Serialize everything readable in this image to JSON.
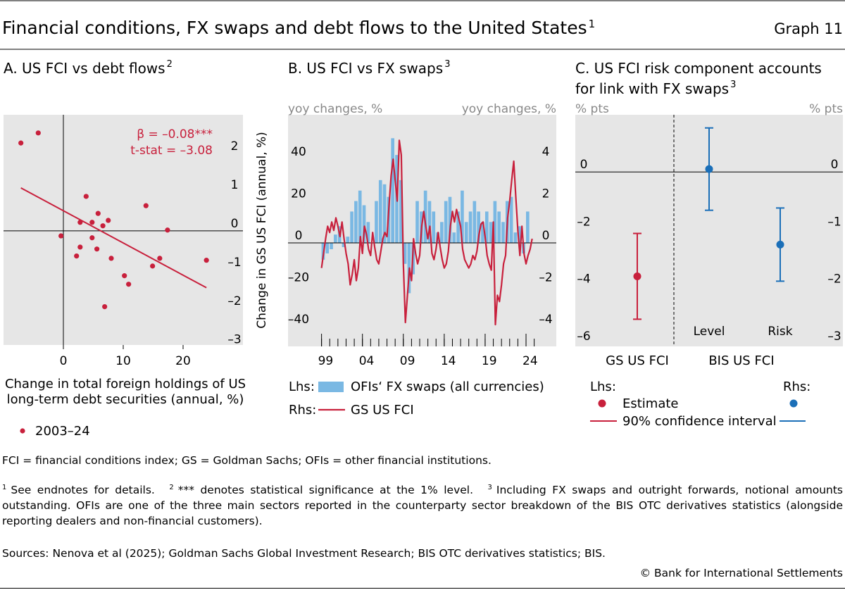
{
  "title": "Financial conditions, FX swaps and debt flows to the United States",
  "title_note": "1",
  "graph_label": "Graph 11",
  "chart_data": [
    {
      "type": "scatter",
      "title": [
        "A. US FCI vs debt flows"
      ],
      "title_note": "2",
      "xlabel": [
        "Change in total foreign holdings of US",
        "long-term debt securities (annual, %)"
      ],
      "ylabel": "Change in GS US FCI (annual, %)",
      "xlim": [
        -10,
        30
      ],
      "ylim": [
        -2.95,
        3.0
      ],
      "xticks": [
        0,
        10,
        20
      ],
      "yticks": [
        {
          "value": -3,
          "label": "–3"
        },
        {
          "value": -2,
          "label": "–2"
        },
        {
          "value": -1,
          "label": "–1"
        },
        0,
        1,
        2
      ],
      "series": [
        {
          "name": "2003–24",
          "color": "#c8203c",
          "x": [
            -7.1,
            -4.2,
            3.8,
            13.8,
            5.8,
            2.8,
            4.8,
            7.5,
            6.6,
            17.4,
            -0.4,
            4.8,
            2.8,
            5.6,
            2.2,
            8.0,
            16.1,
            23.9,
            14.9,
            10.2,
            10.9,
            6.9
          ],
          "values": [
            2.27,
            2.53,
            0.89,
            0.65,
            0.45,
            0.22,
            0.22,
            0.27,
            0.13,
            0.02,
            -0.13,
            -0.18,
            -0.42,
            -0.47,
            -0.65,
            -0.71,
            -0.71,
            -0.76,
            -0.91,
            -1.16,
            -1.38,
            -1.96
          ]
        }
      ],
      "fit": {
        "x": [
          -7.1,
          23.9
        ],
        "y": [
          1.11,
          -1.47
        ]
      },
      "annotations": [
        "β = –0.08***",
        "t-stat = –3.08"
      ]
    },
    {
      "type": "bar-line",
      "title": [
        "B. US FCI vs FX swaps"
      ],
      "title_note": "3",
      "ylabel": "yoy changes, %",
      "y2label": "yoy changes, %",
      "xlim": [
        1994.9,
        2027.7
      ],
      "ylim": [
        -49.4,
        61.2
      ],
      "y2lim": [
        -4.94,
        6.12
      ],
      "yticks": [
        {
          "value": -40,
          "label": "–40"
        },
        {
          "value": -20,
          "label": "–20"
        },
        0,
        20,
        40
      ],
      "y2ticks": [
        {
          "value": -4,
          "label": "–4"
        },
        {
          "value": -2,
          "label": "–2"
        },
        0,
        2,
        4
      ],
      "xticks": [
        {
          "value": 1999,
          "label": "99"
        },
        {
          "value": 2004,
          "label": "04"
        },
        {
          "value": 2009,
          "label": "09"
        },
        {
          "value": 2014,
          "label": "14"
        },
        {
          "value": 2019,
          "label": "19"
        },
        {
          "value": 2024,
          "label": "24"
        }
      ],
      "xminorticks": [
        1999,
        2000,
        2001,
        2002,
        2003,
        2004,
        2005,
        2006,
        2007,
        2008,
        2009,
        2010,
        2011,
        2012,
        2013,
        2014,
        2015,
        2016,
        2017,
        2018,
        2019,
        2020,
        2021,
        2022,
        2023,
        2024,
        2025
      ],
      "series": [
        {
          "name": "OFIs‘ FX swaps (all currencies)",
          "side_label": "Lhs:",
          "type": "bar",
          "axis": "y",
          "color": "#7ab8e3",
          "x": [
            1999.0,
            1999.5,
            2000.0,
            2000.5,
            2001.0,
            2001.5,
            2002.0,
            2002.5,
            2003.0,
            2003.5,
            2004.0,
            2004.5,
            2005.0,
            2005.5,
            2006.0,
            2006.5,
            2007.0,
            2007.5,
            2008.0,
            2008.5,
            2009.0,
            2009.5,
            2010.0,
            2010.5,
            2011.0,
            2011.5,
            2012.0,
            2012.5,
            2013.0,
            2013.5,
            2014.0,
            2014.5,
            2015.0,
            2015.5,
            2016.0,
            2016.5,
            2017.0,
            2017.5,
            2018.0,
            2018.5,
            2019.0,
            2019.5,
            2020.0,
            2020.5,
            2021.0,
            2021.5,
            2022.0,
            2022.5,
            2023.0,
            2023.5,
            2024.0
          ],
          "values": [
            -8,
            -5,
            -3,
            4,
            8,
            -2,
            3,
            15,
            20,
            25,
            18,
            10,
            0,
            20,
            30,
            28,
            22,
            50,
            42,
            30,
            -10,
            -24,
            -15,
            20,
            15,
            25,
            20,
            15,
            5,
            10,
            20,
            22,
            5,
            15,
            25,
            10,
            15,
            20,
            15,
            10,
            15,
            10,
            20,
            15,
            10,
            20,
            22,
            5,
            8,
            -5,
            15
          ]
        },
        {
          "name": "GS US FCI",
          "side_label": "Rhs:",
          "type": "line",
          "axis": "y2",
          "color": "#c8203c",
          "x": [
            1999.0,
            1999.25,
            1999.5,
            1999.75,
            2000.0,
            2000.25,
            2000.5,
            2000.75,
            2001.0,
            2001.25,
            2001.5,
            2001.75,
            2002.0,
            2002.25,
            2002.5,
            2002.75,
            2003.0,
            2003.25,
            2003.5,
            2003.75,
            2004.0,
            2004.25,
            2004.5,
            2004.75,
            2005.0,
            2005.25,
            2005.5,
            2005.75,
            2006.0,
            2006.25,
            2006.5,
            2006.75,
            2007.0,
            2007.25,
            2007.5,
            2007.75,
            2008.0,
            2008.25,
            2008.5,
            2008.75,
            2009.0,
            2009.25,
            2009.5,
            2009.75,
            2010.0,
            2010.25,
            2010.5,
            2010.75,
            2011.0,
            2011.25,
            2011.5,
            2011.75,
            2012.0,
            2012.25,
            2012.5,
            2012.75,
            2013.0,
            2013.25,
            2013.5,
            2013.75,
            2014.0,
            2014.25,
            2014.5,
            2014.75,
            2015.0,
            2015.25,
            2015.5,
            2015.75,
            2016.0,
            2016.25,
            2016.5,
            2016.75,
            2017.0,
            2017.25,
            2017.5,
            2017.75,
            2018.0,
            2018.25,
            2018.5,
            2018.75,
            2019.0,
            2019.25,
            2019.5,
            2019.75,
            2020.0,
            2020.25,
            2020.5,
            2020.75,
            2021.0,
            2021.25,
            2021.5,
            2021.75,
            2022.0,
            2022.25,
            2022.5,
            2022.75,
            2023.0,
            2023.25,
            2023.5,
            2023.75,
            2024.0,
            2024.25,
            2024.5,
            2024.75
          ],
          "values": [
            -1.2,
            -0.5,
            0.2,
            0.8,
            0.5,
            1.0,
            0.6,
            1.2,
            0.8,
            0.3,
            1.0,
            0.2,
            -0.5,
            -1.0,
            -2.0,
            -1.5,
            -0.8,
            -1.8,
            -1.2,
            0.3,
            -0.5,
            0.8,
            0.4,
            -0.3,
            -0.6,
            0.5,
            -0.2,
            -0.8,
            -1.0,
            -0.4,
            0.2,
            0.5,
            0.3,
            1.8,
            3.2,
            4.0,
            3.0,
            2.0,
            4.9,
            4.2,
            -1.0,
            -3.8,
            -2.5,
            -1.2,
            -1.8,
            0.2,
            -0.5,
            -1.0,
            -0.6,
            0.8,
            1.5,
            0.8,
            0.2,
            0.8,
            -0.5,
            -0.8,
            -0.3,
            0.5,
            -0.2,
            -0.8,
            -1.2,
            -1.0,
            -0.4,
            0.8,
            1.5,
            1.0,
            1.6,
            1.2,
            0.8,
            -0.3,
            -0.8,
            -1.0,
            -1.2,
            -1.0,
            -0.6,
            -0.8,
            -0.4,
            0.4,
            0.9,
            1.0,
            0.3,
            -0.6,
            -1.0,
            -1.3,
            1.0,
            -3.9,
            -2.5,
            -2.8,
            -2.0,
            -1.0,
            -0.6,
            1.2,
            2.0,
            3.0,
            3.9,
            2.2,
            0.6,
            -0.6,
            0.8,
            -0.5,
            -1.0,
            -0.6,
            -0.3,
            0.2
          ]
        }
      ]
    },
    {
      "type": "errorbar",
      "title": [
        "C. US FCI risk component accounts",
        "for link with FX swaps"
      ],
      "title_note": "3",
      "ylabel": "% pts",
      "y2label": "% pts",
      "ylim": [
        -6.1,
        2.0
      ],
      "y2lim": [
        -3.05,
        1.0
      ],
      "yticks": [
        {
          "value": -6,
          "label": "–6"
        },
        {
          "value": -4,
          "label": "–4"
        },
        {
          "value": -2,
          "label": "–2"
        },
        0
      ],
      "y2ticks": [
        {
          "value": -3,
          "label": "–3"
        },
        {
          "value": -2,
          "label": "–2"
        },
        {
          "value": -1,
          "label": "–1"
        },
        0
      ],
      "series": [
        {
          "name": "GS US FCI",
          "axis": "y",
          "color": "#c8203c",
          "values": [
            -3.65
          ],
          "errors": [
            1.5
          ]
        },
        {
          "name": "BIS US FCI",
          "axis": "y2",
          "color": "#1b6fb8",
          "categories": [
            "Level",
            "Risk"
          ],
          "values": [
            0.05,
            -1.27
          ],
          "errors": [
            0.72,
            0.64
          ]
        }
      ],
      "legend": {
        "lhs": "Lhs:",
        "rhs": "Rhs:",
        "estimate": "Estimate",
        "interval": "90% confidence interval"
      }
    }
  ],
  "notes": {
    "abbreviations": "FCI = financial conditions index; GS = Goldman Sachs; OFIs = other financial institutions.",
    "footnotes": [
      {
        "mark": "1",
        "text": "See endnotes for details."
      },
      {
        "mark": "2",
        "text": "*** denotes statistical significance at the 1% level."
      },
      {
        "mark": "3",
        "text": "Including FX swaps and outright forwards, notional amounts outstanding. OFIs are one of the three main sectors reported in the counterparty sector breakdown of the BIS OTC derivatives statistics (alongside reporting dealers and non-financial customers)."
      }
    ],
    "sources": "Sources: Nenova et al (2025); Goldman Sachs Global Investment Research; BIS OTC derivatives statistics; BIS.",
    "copyright": "© Bank for International Settlements"
  }
}
